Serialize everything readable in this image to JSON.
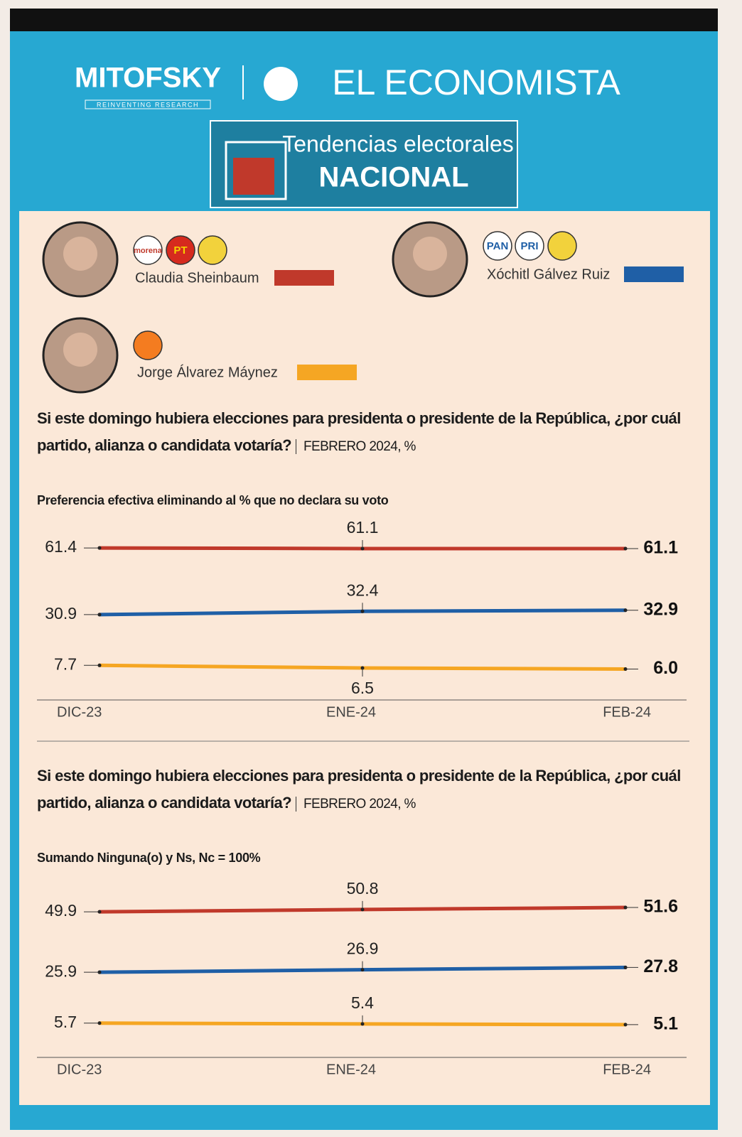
{
  "header": {
    "brand_left": "MITOFSKY",
    "brand_tagline": "REINVENTING RESEARCH",
    "brand_right": "EL ECONOMISTA",
    "section_title": "Tendencias electorales",
    "section_subtitle": "NACIONAL"
  },
  "candidate_parties": [
    [
      "morena",
      "PT"
    ],
    [
      "PAN",
      "PRI"
    ]
  ],
  "chart_data": [
    {
      "type": "line",
      "title": "Si este domingo hubiera elecciones para presidenta o presidente de la República, ¿por cuál partido, alianza o candidata votaría?",
      "subtitle": "FEBRERO 2024, %",
      "note": "Preferencia efectiva eliminando al % que no declara su voto",
      "categories": [
        "DIC-23",
        "ENE-24",
        "FEB-24"
      ],
      "ylim": [
        0,
        65
      ],
      "series": [
        {
          "name": "Claudia Sheinbaum",
          "color": "#c0392b",
          "values": [
            61.4,
            61.1,
            61.1
          ]
        },
        {
          "name": "Xóchitl Gálvez Ruiz",
          "color": "#1f5fa6",
          "values": [
            30.9,
            32.4,
            32.9
          ]
        },
        {
          "name": "Jorge Álvarez Máynez",
          "color": "#f5a623",
          "values": [
            7.7,
            6.5,
            6.0
          ],
          "value_labels": [
            "7.7",
            "6.5",
            "6.0"
          ]
        }
      ]
    },
    {
      "type": "line",
      "title": "Si este domingo hubiera elecciones para presidenta o presidente de la República, ¿por cuál partido, alianza o candidata votaría?",
      "subtitle": "FEBRERO 2024, %",
      "note": "Sumando Ninguna(o) y Ns, Nc = 100%",
      "categories": [
        "DIC-23",
        "ENE-24",
        "FEB-24"
      ],
      "ylim": [
        0,
        55
      ],
      "series": [
        {
          "color": "#c0392b",
          "values": [
            49.9,
            50.8,
            51.6
          ]
        },
        {
          "color": "#1f5fa6",
          "values": [
            25.9,
            26.9,
            27.8
          ]
        },
        {
          "color": "#f5a623",
          "values": [
            5.7,
            5.4,
            5.1
          ]
        }
      ]
    }
  ]
}
